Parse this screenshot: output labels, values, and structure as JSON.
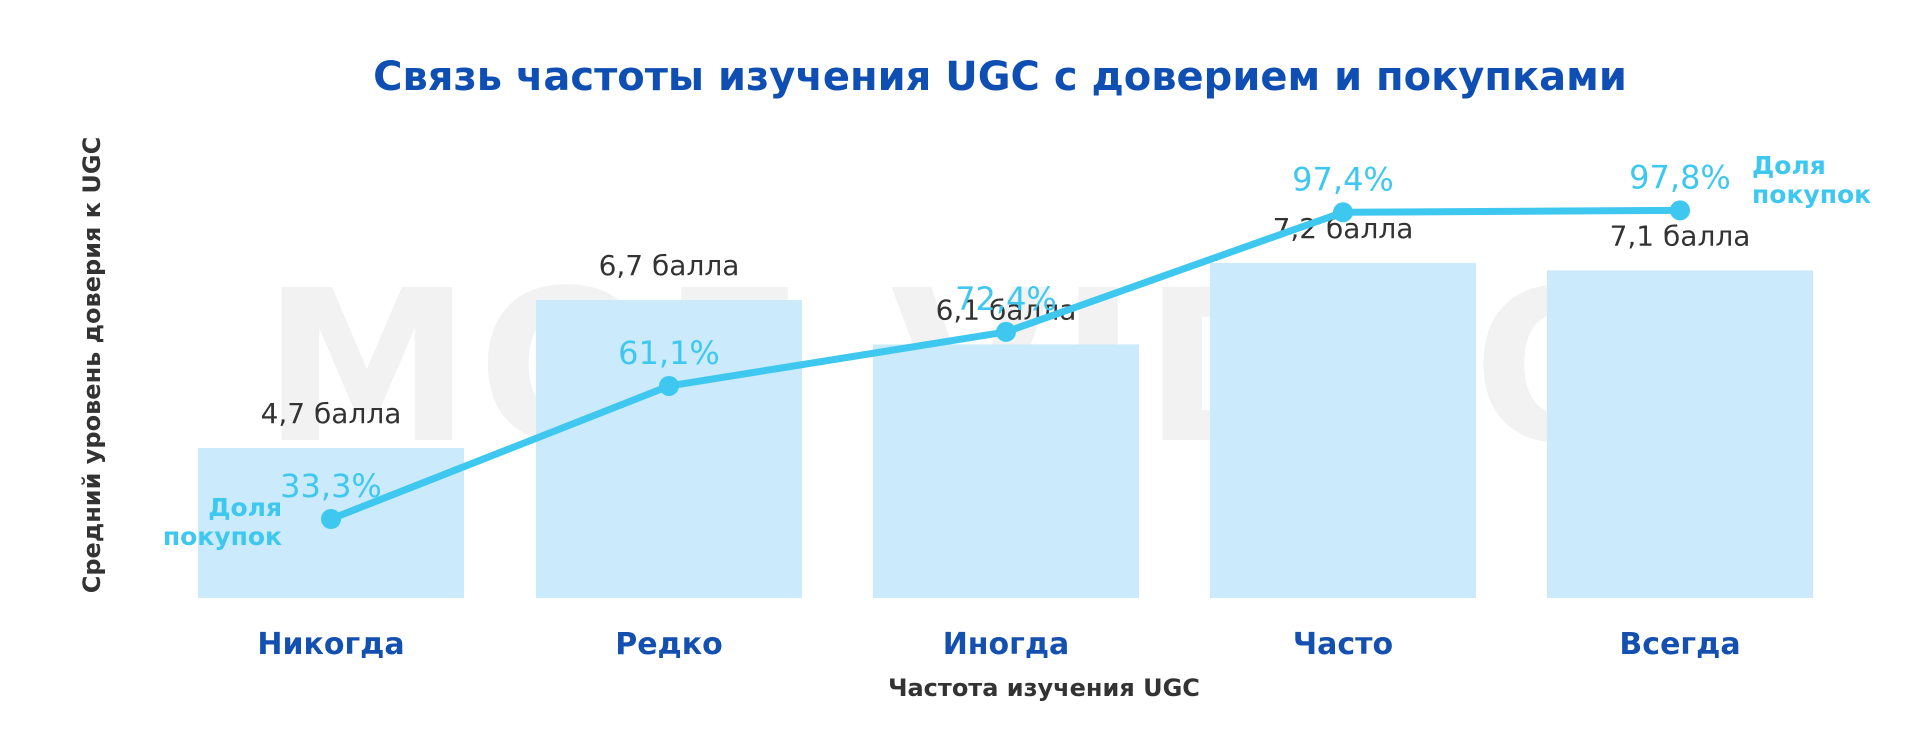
{
  "watermark": "MOE VIDEO",
  "colors": {
    "title": "#0f4fb3",
    "category": "#1450b0",
    "axis_text": "#333333",
    "bar": "#cbeafb",
    "line": "#3ec8ef",
    "bar_label": "#333333",
    "watermark": "#c9c9c9"
  },
  "chart_data": {
    "type": "bar",
    "title": "Связь частоты изучения UGC с доверием и покупками",
    "xlabel": "Частота изучения UGC",
    "ylabel": "Средний уровень доверия к UGC",
    "categories": [
      "Никогда",
      "Редко",
      "Иногда",
      "Часто",
      "Всегда"
    ],
    "bar_series": {
      "values": [
        4.7,
        6.7,
        6.1,
        7.2,
        7.1
      ],
      "labels": [
        "4,7 балла",
        "6,7 балла",
        "6,1 балла",
        "7,2 балла",
        "7,1 балла"
      ]
    },
    "line_series": {
      "name": "Доля покупок",
      "values": [
        33.3,
        61.1,
        72.4,
        97.4,
        97.8
      ],
      "labels": [
        "33,3%",
        "61,1%",
        "72,4%",
        "97,4%",
        "97,8%"
      ],
      "name_labels": [
        [
          "Доля",
          "покупок"
        ],
        [
          "Доля",
          "покупок"
        ]
      ]
    },
    "grid": false
  }
}
